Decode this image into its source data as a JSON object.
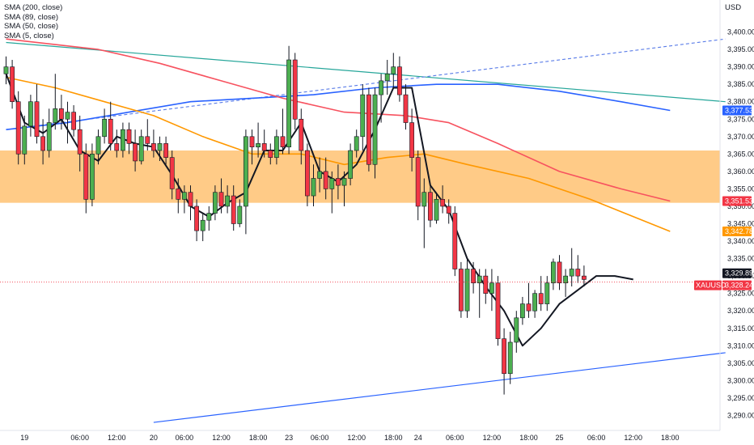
{
  "header": {
    "currency": "USD",
    "legend": [
      "SMA (200, close)",
      "SMA (89, close)",
      "SMA (50, close)",
      "SMA (5, close)"
    ]
  },
  "chart_data": {
    "type": "candlestick",
    "symbol": "XAUUSD",
    "ylim": [
      3285,
      3405
    ],
    "y_ticks": [
      3290,
      3295,
      3300,
      3305,
      3310,
      3315,
      3320,
      3325,
      3330,
      3335,
      3340,
      3345,
      3350,
      3355,
      3360,
      3365,
      3370,
      3375,
      3380,
      3385,
      3390,
      3395,
      3400
    ],
    "x_ticks": [
      {
        "bar": 3,
        "label": "19"
      },
      {
        "bar": 12,
        "label": "06:00"
      },
      {
        "bar": 18,
        "label": "12:00"
      },
      {
        "bar": 24,
        "label": "20"
      },
      {
        "bar": 29,
        "label": "06:00"
      },
      {
        "bar": 35,
        "label": "12:00"
      },
      {
        "bar": 41,
        "label": "18:00"
      },
      {
        "bar": 46,
        "label": "23"
      },
      {
        "bar": 51,
        "label": "06:00"
      },
      {
        "bar": 57,
        "label": "12:00"
      },
      {
        "bar": 63,
        "label": "18:00"
      },
      {
        "bar": 67,
        "label": "24"
      },
      {
        "bar": 73,
        "label": "06:00"
      },
      {
        "bar": 79,
        "label": "12:00"
      },
      {
        "bar": 85,
        "label": "18:00"
      },
      {
        "bar": 90,
        "label": "25"
      },
      {
        "bar": 96,
        "label": "06:00"
      },
      {
        "bar": 102,
        "label": "12:00"
      },
      {
        "bar": 108,
        "label": "18:00"
      }
    ],
    "ohlc": [
      [
        3388,
        3393,
        3385,
        3390
      ],
      [
        3390,
        3392,
        3378,
        3380
      ],
      [
        3380,
        3383,
        3362,
        3365
      ],
      [
        3365,
        3376,
        3362,
        3373
      ],
      [
        3373,
        3382,
        3370,
        3380
      ],
      [
        3380,
        3385,
        3368,
        3370
      ],
      [
        3370,
        3375,
        3362,
        3366
      ],
      [
        3366,
        3378,
        3364,
        3374
      ],
      [
        3374,
        3388,
        3372,
        3378
      ],
      [
        3378,
        3382,
        3372,
        3375
      ],
      [
        3375,
        3380,
        3368,
        3377
      ],
      [
        3377,
        3379,
        3370,
        3372
      ],
      [
        3372,
        3376,
        3360,
        3365
      ],
      [
        3365,
        3368,
        3348,
        3352
      ],
      [
        3352,
        3368,
        3350,
        3365
      ],
      [
        3365,
        3372,
        3362,
        3370
      ],
      [
        3370,
        3378,
        3368,
        3375
      ],
      [
        3375,
        3380,
        3366,
        3368
      ],
      [
        3368,
        3372,
        3364,
        3366
      ],
      [
        3366,
        3374,
        3364,
        3372
      ],
      [
        3372,
        3374,
        3365,
        3368
      ],
      [
        3368,
        3372,
        3360,
        3363
      ],
      [
        3363,
        3372,
        3362,
        3370
      ],
      [
        3370,
        3375,
        3366,
        3368
      ],
      [
        3368,
        3372,
        3364,
        3366
      ],
      [
        3366,
        3370,
        3363,
        3368
      ],
      [
        3368,
        3370,
        3362,
        3364
      ],
      [
        3364,
        3366,
        3352,
        3355
      ],
      [
        3355,
        3358,
        3348,
        3352
      ],
      [
        3352,
        3356,
        3348,
        3354
      ],
      [
        3354,
        3356,
        3346,
        3350
      ],
      [
        3350,
        3352,
        3340,
        3343
      ],
      [
        3343,
        3348,
        3340,
        3346
      ],
      [
        3346,
        3350,
        3343,
        3348
      ],
      [
        3348,
        3356,
        3346,
        3354
      ],
      [
        3354,
        3358,
        3348,
        3350
      ],
      [
        3350,
        3356,
        3348,
        3353
      ],
      [
        3353,
        3356,
        3343,
        3345
      ],
      [
        3345,
        3352,
        3344,
        3350
      ],
      [
        3350,
        3372,
        3342,
        3370
      ],
      [
        3370,
        3372,
        3362,
        3367
      ],
      [
        3367,
        3374,
        3364,
        3368
      ],
      [
        3368,
        3372,
        3364,
        3366
      ],
      [
        3366,
        3368,
        3362,
        3364
      ],
      [
        3364,
        3372,
        3362,
        3370
      ],
      [
        3370,
        3378,
        3365,
        3367
      ],
      [
        3367,
        3396,
        3365,
        3392
      ],
      [
        3392,
        3394,
        3372,
        3375
      ],
      [
        3375,
        3378,
        3362,
        3366
      ],
      [
        3366,
        3368,
        3350,
        3353
      ],
      [
        3353,
        3362,
        3350,
        3358
      ],
      [
        3358,
        3364,
        3354,
        3360
      ],
      [
        3360,
        3364,
        3352,
        3355
      ],
      [
        3355,
        3360,
        3348,
        3358
      ],
      [
        3358,
        3362,
        3352,
        3356
      ],
      [
        3356,
        3360,
        3350,
        3358
      ],
      [
        3358,
        3368,
        3356,
        3366
      ],
      [
        3366,
        3372,
        3364,
        3370
      ],
      [
        3370,
        3385,
        3366,
        3382
      ],
      [
        3382,
        3384,
        3360,
        3362
      ],
      [
        3362,
        3384,
        3358,
        3382
      ],
      [
        3382,
        3388,
        3374,
        3386
      ],
      [
        3386,
        3392,
        3382,
        3388
      ],
      [
        3388,
        3394,
        3384,
        3390
      ],
      [
        3390,
        3393,
        3380,
        3382
      ],
      [
        3382,
        3385,
        3372,
        3374
      ],
      [
        3374,
        3378,
        3360,
        3364
      ],
      [
        3364,
        3366,
        3346,
        3350
      ],
      [
        3350,
        3358,
        3338,
        3354
      ],
      [
        3354,
        3356,
        3344,
        3346
      ],
      [
        3346,
        3354,
        3345,
        3352
      ],
      [
        3352,
        3356,
        3348,
        3350
      ],
      [
        3350,
        3352,
        3345,
        3348
      ],
      [
        3348,
        3350,
        3330,
        3332
      ],
      [
        3332,
        3334,
        3318,
        3320
      ],
      [
        3320,
        3335,
        3318,
        3332
      ],
      [
        3332,
        3334,
        3325,
        3328
      ],
      [
        3328,
        3332,
        3318,
        3330
      ],
      [
        3330,
        3332,
        3322,
        3325
      ],
      [
        3325,
        3332,
        3320,
        3328
      ],
      [
        3328,
        3330,
        3310,
        3312
      ],
      [
        3312,
        3315,
        3296,
        3302
      ],
      [
        3302,
        3314,
        3299,
        3311
      ],
      [
        3311,
        3320,
        3308,
        3318
      ],
      [
        3318,
        3324,
        3316,
        3322
      ],
      [
        3322,
        3328,
        3318,
        3320
      ],
      [
        3320,
        3326,
        3318,
        3325
      ],
      [
        3325,
        3330,
        3320,
        3322
      ],
      [
        3322,
        3330,
        3320,
        3328
      ],
      [
        3328,
        3335,
        3326,
        3334
      ],
      [
        3334,
        3336,
        3326,
        3328
      ],
      [
        3328,
        3332,
        3324,
        3330
      ],
      [
        3330,
        3338,
        3327,
        3332
      ],
      [
        3332,
        3336,
        3328,
        3330
      ],
      [
        3330,
        3333,
        3327,
        3329
      ]
    ],
    "sma_lines": [
      {
        "name": "SMA (200, close)",
        "color": "#2962ff",
        "last": "3,377.53",
        "points": [
          [
            0,
            3372
          ],
          [
            10,
            3374
          ],
          [
            20,
            3377
          ],
          [
            30,
            3380
          ],
          [
            40,
            3381
          ],
          [
            50,
            3382
          ],
          [
            60,
            3384
          ],
          [
            70,
            3385
          ],
          [
            80,
            3385
          ],
          [
            90,
            3383
          ],
          [
            100,
            3380
          ],
          [
            108,
            3377.5
          ]
        ]
      },
      {
        "name": "SMA (89, close)",
        "color": "#f7525f",
        "last": "3,351.53",
        "points": [
          [
            0,
            3398
          ],
          [
            15,
            3395
          ],
          [
            25,
            3391
          ],
          [
            35,
            3386
          ],
          [
            45,
            3381
          ],
          [
            55,
            3377
          ],
          [
            65,
            3376
          ],
          [
            72,
            3374
          ],
          [
            80,
            3368
          ],
          [
            90,
            3360
          ],
          [
            100,
            3355
          ],
          [
            108,
            3351.5
          ]
        ]
      },
      {
        "name": "SMA (50, close)",
        "color": "#ff9800",
        "last": "3,342.78",
        "points": [
          [
            0,
            3387
          ],
          [
            8,
            3384
          ],
          [
            16,
            3380
          ],
          [
            24,
            3376
          ],
          [
            32,
            3370
          ],
          [
            40,
            3365
          ],
          [
            48,
            3365
          ],
          [
            55,
            3362
          ],
          [
            62,
            3364
          ],
          [
            68,
            3365
          ],
          [
            75,
            3362
          ],
          [
            85,
            3358
          ],
          [
            95,
            3352
          ],
          [
            108,
            3342.8
          ]
        ]
      },
      {
        "name": "SMA (5, close)",
        "color": "#131722",
        "last": "",
        "points": [
          [
            0,
            3388
          ],
          [
            3,
            3374
          ],
          [
            6,
            3371
          ],
          [
            9,
            3375
          ],
          [
            12,
            3366
          ],
          [
            15,
            3363
          ],
          [
            18,
            3370
          ],
          [
            21,
            3368
          ],
          [
            24,
            3367
          ],
          [
            27,
            3359
          ],
          [
            30,
            3350
          ],
          [
            33,
            3347
          ],
          [
            36,
            3351
          ],
          [
            39,
            3354
          ],
          [
            42,
            3366
          ],
          [
            45,
            3366
          ],
          [
            48,
            3374
          ],
          [
            51,
            3360
          ],
          [
            54,
            3357
          ],
          [
            57,
            3362
          ],
          [
            60,
            3372
          ],
          [
            63,
            3384
          ],
          [
            66,
            3384
          ],
          [
            69,
            3356
          ],
          [
            72,
            3349
          ],
          [
            75,
            3335
          ],
          [
            78,
            3327
          ],
          [
            81,
            3320
          ],
          [
            84,
            3310
          ],
          [
            87,
            3315
          ],
          [
            90,
            3322
          ],
          [
            93,
            3326
          ],
          [
            96,
            3330
          ],
          [
            99,
            3330
          ],
          [
            102,
            3329
          ]
        ]
      }
    ],
    "trendlines": [
      {
        "name": "upper-teal-trendline",
        "color": "#26a69a",
        "from": [
          0,
          3397
        ],
        "to": [
          117,
          3380
        ]
      },
      {
        "name": "dashed-blue-trendline",
        "color": "#5b7de8",
        "dashed": true,
        "from": [
          0,
          3372
        ],
        "to": [
          117,
          3398
        ]
      },
      {
        "name": "lower-blue-trendline",
        "color": "#2962ff",
        "from": [
          24,
          3288
        ],
        "to": [
          117,
          3308
        ]
      }
    ],
    "zone": {
      "low": 3351,
      "high": 3366,
      "color": "#ffc57a"
    },
    "current_price": {
      "value": 3328.24,
      "label": "3,328.24",
      "symbol": "XAUUSD",
      "color": "#f23645"
    },
    "last_sma5_label": "3,329.89",
    "colors": {
      "up": "#4caf50",
      "down": "#f23645"
    }
  }
}
